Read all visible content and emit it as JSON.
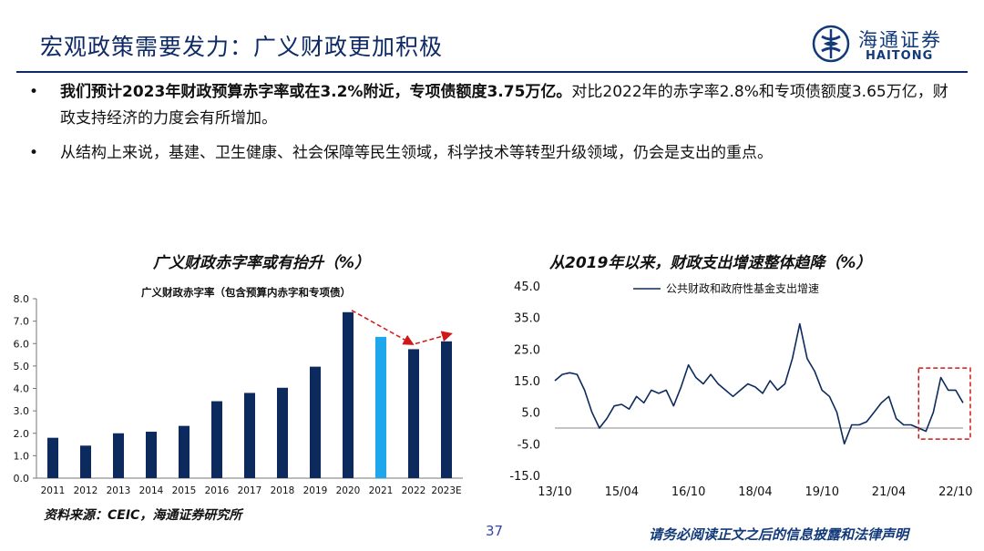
{
  "header": {
    "title": "宏观政策需要发力：广义财政更加积极",
    "logo_cn": "海通证券",
    "logo_en": "HAITONG"
  },
  "bullets": [
    {
      "bold": "我们预计2023年财政预算赤字率或在3.2%附近，专项债额度3.75万亿。",
      "text": "对比2022年的赤字率2.8%和专项债额度3.65万亿，财政支持经济的力度会有所增加。"
    },
    {
      "bold": "",
      "text": "从结构上来说，基建、卫生健康、社会保障等民生领域，科学技术等转型升级领域，仍会是支出的重点。"
    }
  ],
  "chart_data": [
    {
      "type": "bar",
      "title": "广义财政赤字率或有抬升（%）",
      "series_label": "广义财政赤字率（包含预算内赤字和专项债）",
      "categories": [
        "2011",
        "2012",
        "2013",
        "2014",
        "2015",
        "2016",
        "2017",
        "2018",
        "2019",
        "2020",
        "2021",
        "2022",
        "2023E"
      ],
      "values": [
        1.8,
        1.45,
        2.0,
        2.07,
        2.33,
        3.43,
        3.8,
        4.03,
        4.97,
        7.4,
        6.3,
        5.75,
        6.1
      ],
      "highlight_category": "2021",
      "yticks": [
        "8.0",
        "7.0",
        "6.0",
        "5.0",
        "4.0",
        "3.0",
        "2.0",
        "1.0",
        "0.0"
      ],
      "ylim": [
        0,
        8
      ],
      "colors": {
        "bar": "#0d2a5e",
        "highlight": "#1ea7ea",
        "arrow": "#d01818"
      }
    },
    {
      "type": "line",
      "title": "从2019年以来，财政支出增速整体趋降（%）",
      "legend": "公共财政和政府性基金支出增速",
      "legend_position": "top",
      "xticks": [
        "13/10",
        "15/04",
        "16/10",
        "18/04",
        "19/10",
        "21/04",
        "22/10"
      ],
      "yticks": [
        "45.0",
        "35.0",
        "25.0",
        "15.0",
        "5.0",
        "-5.0",
        "-15.0"
      ],
      "ylim": [
        -15,
        45
      ],
      "x": [
        "13/10",
        "13/12",
        "14/02",
        "14/04",
        "14/06",
        "14/08",
        "14/10",
        "14/12",
        "15/02",
        "15/04",
        "15/06",
        "15/08",
        "15/10",
        "15/12",
        "16/02",
        "16/04",
        "16/06",
        "16/08",
        "16/10",
        "16/12",
        "17/02",
        "17/04",
        "17/06",
        "17/08",
        "17/10",
        "17/12",
        "18/02",
        "18/04",
        "18/06",
        "18/08",
        "18/10",
        "18/12",
        "19/02",
        "19/04",
        "19/06",
        "19/08",
        "19/10",
        "19/12",
        "20/02",
        "20/04",
        "20/06",
        "20/08",
        "20/10",
        "20/12",
        "21/02",
        "21/04",
        "21/06",
        "21/08",
        "21/10",
        "21/12",
        "22/02",
        "22/04",
        "22/06",
        "22/08",
        "22/10",
        "22/12"
      ],
      "values": [
        15,
        17,
        17.5,
        17,
        12,
        5,
        0,
        3,
        7,
        7.5,
        6,
        10,
        8,
        12,
        11,
        12,
        7,
        13,
        20,
        16,
        14,
        17,
        14,
        12,
        10,
        12,
        14,
        13,
        11,
        15,
        12,
        14,
        22,
        33,
        22,
        18,
        12,
        10,
        5,
        -5,
        1,
        1,
        2,
        5,
        8,
        10,
        3,
        1,
        1,
        0,
        -1,
        5,
        16,
        12,
        12,
        8
      ],
      "highlight_box": {
        "from": "22/02",
        "to": "22/12"
      },
      "colors": {
        "line": "#0d2a5e",
        "zero_line": "#888888",
        "box": "#d01818"
      }
    }
  ],
  "footer": {
    "source": "资料来源：CEIC，海通证券研究所",
    "page": "37",
    "disclaimer": "请务必阅读正文之后的信息披露和法律声明"
  }
}
